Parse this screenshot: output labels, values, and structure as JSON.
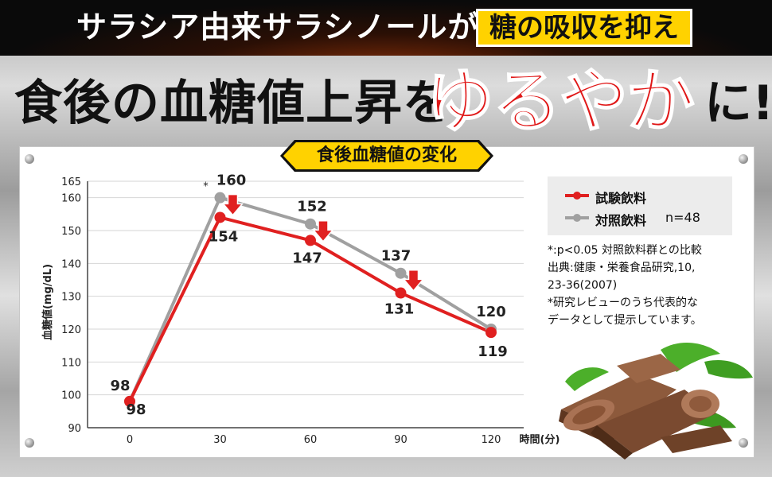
{
  "banner": {
    "text": "サラシア由来サラシノールが",
    "highlight": "糖の吸収を抑え"
  },
  "headline": {
    "part1": "食後の血糖値上昇を",
    "part2": "ゆるやか",
    "part3": "に!"
  },
  "badge": "食後血糖値の変化",
  "legend": {
    "test": "試験飲料",
    "control": "対照飲料",
    "n": "n=48"
  },
  "notes": {
    "line1": "*:p<0.05 対照飲料群との比較",
    "line2": "出典:健康・栄養食品研究,10,",
    "line3": "23-36(2007)",
    "line4": "*研究レビューのうち代表的な",
    "line5": "データとして提示しています。"
  },
  "colors": {
    "test": "#e02020",
    "control": "#a0a0a0",
    "highlight": "#ffd200",
    "headline_accent": "#e01818"
  },
  "chart_data": {
    "type": "line",
    "xlabel": "時間(分)",
    "ylabel": "血糖値(mg/dL)",
    "x": [
      0,
      30,
      60,
      90,
      120
    ],
    "xlim": [
      0,
      120
    ],
    "ylim": [
      90,
      165
    ],
    "yticks": [
      90,
      100,
      110,
      120,
      130,
      140,
      150,
      160,
      165
    ],
    "series": [
      {
        "name": "試験飲料",
        "values": [
          98,
          154,
          147,
          131,
          119
        ],
        "color": "#e02020"
      },
      {
        "name": "対照飲料",
        "values": [
          98,
          160,
          152,
          137,
          120
        ],
        "color": "#a0a0a0"
      }
    ],
    "annotations": [
      {
        "text": "*",
        "x": 30,
        "series": "対照飲料"
      }
    ],
    "grid": true,
    "legend_position": "top-right"
  }
}
